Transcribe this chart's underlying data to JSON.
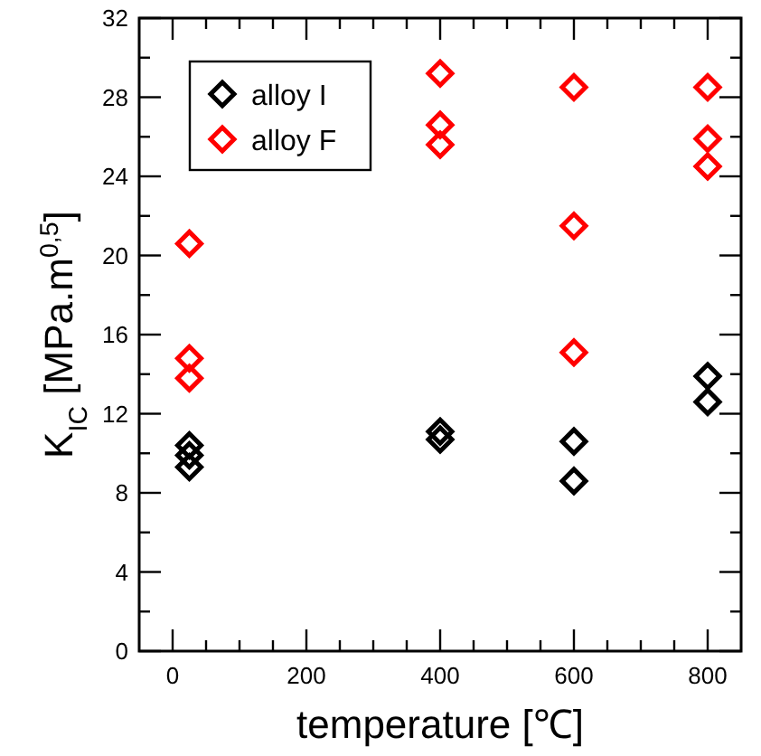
{
  "chart_data": {
    "type": "scatter",
    "xlabel": "temperature [℃]",
    "ylabel": "K$_{IC}$ [MPa.m$^{0,5}$]",
    "xlim": [
      -50,
      850
    ],
    "ylim": [
      0,
      32
    ],
    "xticks": [
      {
        "value": 0,
        "label": "0"
      },
      {
        "value": 50,
        "label": null
      },
      {
        "value": 100,
        "label": null
      },
      {
        "value": 150,
        "label": null
      },
      {
        "value": 200,
        "label": "200"
      },
      {
        "value": 250,
        "label": null
      },
      {
        "value": 300,
        "label": null
      },
      {
        "value": 350,
        "label": null
      },
      {
        "value": 400,
        "label": "400"
      },
      {
        "value": 450,
        "label": null
      },
      {
        "value": 500,
        "label": null
      },
      {
        "value": 550,
        "label": null
      },
      {
        "value": 600,
        "label": "600"
      },
      {
        "value": 650,
        "label": null
      },
      {
        "value": 700,
        "label": null
      },
      {
        "value": 750,
        "label": null
      },
      {
        "value": 800,
        "label": "800"
      }
    ],
    "yticks": [
      0,
      {
        "value": 2,
        "label": null
      },
      4,
      {
        "value": 6,
        "label": null
      },
      8,
      {
        "value": 10,
        "label": null
      },
      12,
      {
        "value": 14,
        "label": null
      },
      16,
      {
        "value": 18,
        "label": null
      },
      20,
      {
        "value": 22,
        "label": null
      },
      24,
      {
        "value": 26,
        "label": null
      },
      28,
      {
        "value": 30,
        "label": null
      },
      32
    ],
    "marker": "diamond",
    "legend": "top left",
    "grid": false,
    "series": [
      {
        "name": "alloy I",
        "color": "#000000",
        "x": [
          25,
          25,
          25,
          400,
          400,
          600,
          600,
          800,
          800
        ],
        "values": [
          10.4,
          9.9,
          9.3,
          11.1,
          10.7,
          10.6,
          8.6,
          13.9,
          12.6
        ]
      },
      {
        "name": "alloy F",
        "color": "#ff0000",
        "x": [
          25,
          25,
          25,
          400,
          400,
          400,
          600,
          600,
          600,
          800,
          800,
          800
        ],
        "values": [
          20.6,
          14.8,
          13.8,
          29.2,
          26.6,
          25.6,
          28.5,
          21.5,
          15.1,
          28.5,
          25.9,
          24.5
        ]
      }
    ]
  }
}
